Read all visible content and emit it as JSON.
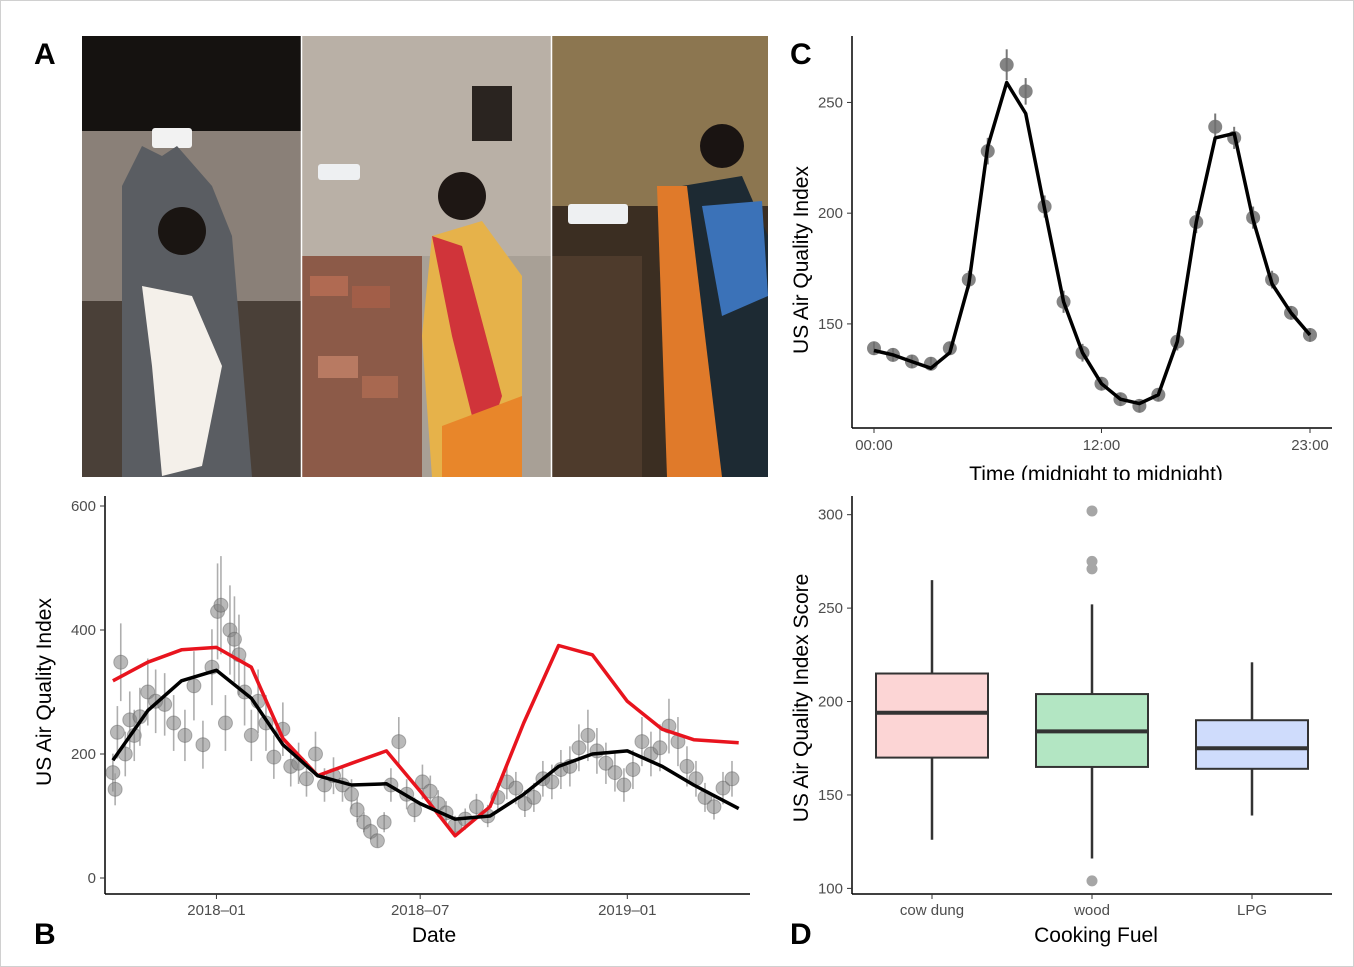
{
  "panel_labels": {
    "a": "A",
    "b": "B",
    "c": "C",
    "d": "D"
  },
  "photos": {
    "description_icons": [
      "photo-man-installing-monitor",
      "photo-woman-installing-monitor-brick-wall",
      "photo-woman-installing-monitor-thatch-roof"
    ]
  },
  "chart_data": [
    {
      "type": "scatter",
      "panel": "B",
      "xlabel": "Date",
      "ylabel": "US Air Quality Index",
      "x_ticks": [
        "2018–01",
        "2018–07",
        "2019–01"
      ],
      "y_ticks": [
        "0",
        "200",
        "400",
        "600"
      ],
      "ylim": [
        0,
        600
      ],
      "xlim": [
        "2017-09-24",
        "2019-04-20"
      ],
      "grid": false,
      "colors": {
        "points": "#808080",
        "black_curve": "#000000",
        "red_curve": "#e8141e"
      },
      "series": [
        {
          "kind": "line",
          "color": "#e8141e",
          "x": [
            "2017-10-01",
            "2017-11-01",
            "2017-12-01",
            "2018-01-01",
            "2018-02-01",
            "2018-03-01",
            "2018-04-01",
            "2018-05-01",
            "2018-06-01",
            "2018-07-01",
            "2018-08-01",
            "2018-09-01",
            "2018-10-01",
            "2018-11-01",
            "2018-12-01",
            "2019-01-01",
            "2019-02-01",
            "2019-03-01",
            "2019-04-10"
          ],
          "y": [
            318,
            348,
            368,
            372,
            340,
            225,
            165,
            185,
            205,
            140,
            68,
            115,
            250,
            375,
            360,
            285,
            240,
            223,
            218
          ]
        },
        {
          "kind": "line",
          "color": "#000000",
          "x": [
            "2017-10-01",
            "2017-11-01",
            "2017-12-01",
            "2018-01-01",
            "2018-02-01",
            "2018-03-01",
            "2018-04-01",
            "2018-05-01",
            "2018-06-01",
            "2018-07-01",
            "2018-08-01",
            "2018-09-01",
            "2018-10-01",
            "2018-11-01",
            "2018-12-01",
            "2019-01-01",
            "2019-02-01",
            "2019-03-01",
            "2019-04-10"
          ],
          "y": [
            190,
            270,
            318,
            335,
            290,
            215,
            165,
            150,
            152,
            120,
            95,
            100,
            135,
            180,
            200,
            205,
            180,
            150,
            112
          ]
        },
        {
          "kind": "points",
          "color": "#808080",
          "x": [
            "2017-10-01",
            "2017-10-03",
            "2017-10-05",
            "2017-10-08",
            "2017-10-12",
            "2017-10-16",
            "2017-10-20",
            "2017-10-25",
            "2017-11-01",
            "2017-11-08",
            "2017-11-16",
            "2017-11-24",
            "2017-12-04",
            "2017-12-12",
            "2017-12-20",
            "2017-12-28",
            "2018-01-02",
            "2018-01-05",
            "2018-01-09",
            "2018-01-13",
            "2018-01-17",
            "2018-01-21",
            "2018-01-26",
            "2018-02-01",
            "2018-02-07",
            "2018-02-14",
            "2018-02-21",
            "2018-03-01",
            "2018-03-08",
            "2018-03-15",
            "2018-03-22",
            "2018-03-30",
            "2018-04-07",
            "2018-04-15",
            "2018-04-23",
            "2018-05-01",
            "2018-05-06",
            "2018-05-12",
            "2018-05-18",
            "2018-05-24",
            "2018-05-30",
            "2018-06-05",
            "2018-06-12",
            "2018-06-19",
            "2018-06-26",
            "2018-07-03",
            "2018-07-10",
            "2018-07-17",
            "2018-07-24",
            "2018-08-01",
            "2018-08-10",
            "2018-08-20",
            "2018-08-30",
            "2018-09-08",
            "2018-09-16",
            "2018-09-24",
            "2018-10-02",
            "2018-10-10",
            "2018-10-18",
            "2018-10-26",
            "2018-11-03",
            "2018-11-11",
            "2018-11-19",
            "2018-11-27",
            "2018-12-05",
            "2018-12-13",
            "2018-12-21",
            "2018-12-29",
            "2019-01-06",
            "2019-01-14",
            "2019-01-22",
            "2019-01-30",
            "2019-02-07",
            "2019-02-15",
            "2019-02-23",
            "2019-03-03",
            "2019-03-11",
            "2019-03-19",
            "2019-03-27",
            "2019-04-04"
          ],
          "y": [
            170,
            143,
            235,
            348,
            200,
            255,
            230,
            260,
            300,
            285,
            280,
            250,
            230,
            310,
            215,
            340,
            430,
            440,
            250,
            400,
            385,
            360,
            300,
            230,
            285,
            250,
            195,
            240,
            180,
            185,
            160,
            200,
            150,
            165,
            150,
            135,
            110,
            90,
            75,
            60,
            90,
            150,
            220,
            135,
            110,
            155,
            140,
            120,
            105,
            85,
            95,
            115,
            100,
            130,
            155,
            145,
            120,
            130,
            160,
            155,
            175,
            180,
            210,
            230,
            205,
            185,
            170,
            150,
            175,
            220,
            200,
            210,
            245,
            220,
            180,
            160,
            130,
            115,
            145,
            160
          ]
        }
      ]
    },
    {
      "type": "line",
      "panel": "C",
      "xlabel": "Time (midnight to midnight)",
      "ylabel": "US Air Quality Index",
      "x_ticks": [
        "00:00",
        "12:00",
        "23:00"
      ],
      "y_ticks": [
        "150",
        "200",
        "250"
      ],
      "xlim": [
        -0.3,
        23.5
      ],
      "ylim": [
        103,
        280
      ],
      "grid": false,
      "x_hours": [
        0,
        1,
        2,
        3,
        4,
        5,
        6,
        7,
        8,
        9,
        10,
        11,
        12,
        13,
        14,
        15,
        16,
        17,
        18,
        19,
        20,
        21,
        22,
        23
      ],
      "fit_line": [
        138,
        136,
        133,
        130,
        137,
        168,
        230,
        259,
        245,
        202,
        160,
        137,
        123,
        116,
        114,
        118,
        142,
        196,
        234,
        236,
        197,
        168,
        155,
        145
      ],
      "points": [
        139,
        136,
        133,
        132,
        139,
        170,
        228,
        267,
        255,
        203,
        160,
        137,
        123,
        116,
        113,
        118,
        142,
        196,
        239,
        234,
        198,
        170,
        155,
        145
      ],
      "err_low": [
        136,
        133,
        130,
        129,
        136,
        166,
        222,
        260,
        249,
        198,
        155,
        133,
        120,
        113,
        110,
        115,
        138,
        191,
        233,
        229,
        193,
        166,
        152,
        142
      ],
      "err_high": [
        142,
        139,
        136,
        135,
        142,
        174,
        234,
        274,
        261,
        208,
        165,
        141,
        126,
        119,
        116,
        121,
        146,
        201,
        245,
        239,
        203,
        174,
        158,
        148
      ]
    },
    {
      "type": "box",
      "panel": "D",
      "xlabel": "Cooking Fuel",
      "ylabel": "US Air Quality Index Score",
      "categories": [
        "cow dung",
        "wood",
        "LPG"
      ],
      "y_ticks": [
        "100",
        "150",
        "200",
        "250",
        "300"
      ],
      "ylim": [
        97,
        310
      ],
      "grid": false,
      "boxes": [
        {
          "fill": "#fcd5d5",
          "min": 126,
          "q1": 170,
          "median": 194,
          "q3": 215,
          "max": 265,
          "outliers": []
        },
        {
          "fill": "#b3e6c3",
          "min": 116,
          "q1": 165,
          "median": 184,
          "q3": 204,
          "max": 252,
          "outliers": [
            104,
            271,
            275,
            302
          ]
        },
        {
          "fill": "#cfdcfc",
          "min": 139,
          "q1": 164,
          "median": 175,
          "q3": 190,
          "max": 221,
          "outliers": []
        }
      ]
    }
  ]
}
